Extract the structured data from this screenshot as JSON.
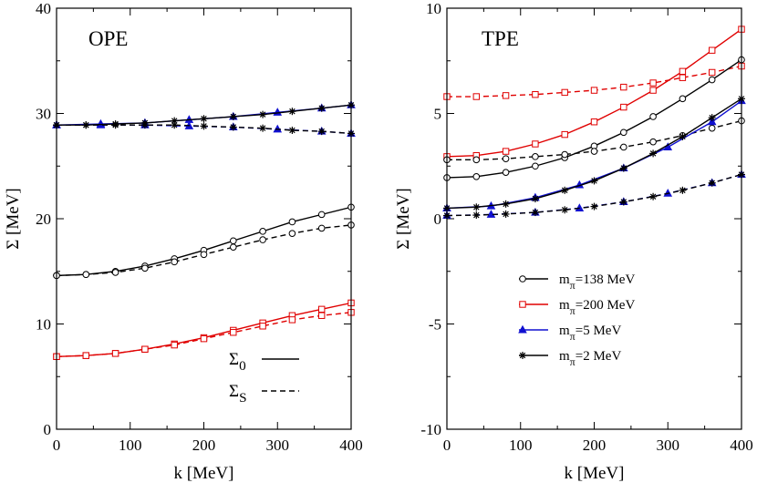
{
  "chart_data": [
    {
      "type": "line",
      "title": "OPE",
      "xlabel": "k [MeV]",
      "ylabel": "Σ [MeV]",
      "xlim": [
        0,
        400
      ],
      "ylim": [
        0,
        40
      ],
      "xticks": [
        0,
        100,
        200,
        300,
        400
      ],
      "yticks": [
        0,
        10,
        20,
        30,
        40
      ],
      "grid": false,
      "legend": [
        {
          "label": "Σ",
          "sub": "0",
          "dash": "solid"
        },
        {
          "label": "Σ",
          "sub": "S",
          "dash": "dashed"
        }
      ],
      "series": [
        {
          "color": "#000000",
          "marker": "circle",
          "dash": "solid",
          "x": [
            0,
            40,
            80,
            120,
            160,
            200,
            240,
            280,
            320,
            360,
            400
          ],
          "y": [
            14.6,
            14.7,
            15.0,
            15.5,
            16.2,
            17.0,
            17.9,
            18.8,
            19.7,
            20.4,
            21.1
          ]
        },
        {
          "color": "#000000",
          "marker": "circle",
          "dash": "dashed",
          "x": [
            0,
            40,
            80,
            120,
            160,
            200,
            240,
            280,
            320,
            360,
            400
          ],
          "y": [
            14.6,
            14.7,
            14.9,
            15.3,
            15.9,
            16.6,
            17.3,
            18.0,
            18.6,
            19.1,
            19.4
          ]
        },
        {
          "color": "#e00000",
          "marker": "square",
          "dash": "solid",
          "x": [
            0,
            40,
            80,
            120,
            160,
            200,
            240,
            280,
            320,
            360,
            400
          ],
          "y": [
            6.9,
            7.0,
            7.2,
            7.6,
            8.1,
            8.7,
            9.4,
            10.1,
            10.8,
            11.4,
            12.0
          ]
        },
        {
          "color": "#e00000",
          "marker": "square",
          "dash": "dashed",
          "x": [
            0,
            40,
            80,
            120,
            160,
            200,
            240,
            280,
            320,
            360,
            400
          ],
          "y": [
            6.9,
            7.0,
            7.2,
            7.6,
            8.0,
            8.6,
            9.2,
            9.8,
            10.4,
            10.8,
            11.1
          ]
        },
        {
          "color": "#1010d0",
          "marker": "triangle",
          "dash": "solid",
          "x": [
            0,
            60,
            120,
            180,
            240,
            300,
            360,
            400
          ],
          "y": [
            28.9,
            29.0,
            29.1,
            29.4,
            29.7,
            30.1,
            30.5,
            30.8
          ]
        },
        {
          "color": "#1010d0",
          "marker": "triangle",
          "dash": "dashed",
          "x": [
            0,
            60,
            120,
            180,
            240,
            300,
            360,
            400
          ],
          "y": [
            28.9,
            28.9,
            28.9,
            28.8,
            28.7,
            28.5,
            28.3,
            28.1
          ]
        },
        {
          "color": "#000000",
          "marker": "star",
          "dash": "solid",
          "x": [
            0,
            40,
            80,
            120,
            160,
            200,
            240,
            280,
            320,
            360,
            400
          ],
          "y": [
            28.9,
            28.9,
            29.0,
            29.1,
            29.3,
            29.5,
            29.7,
            29.9,
            30.2,
            30.5,
            30.8
          ]
        },
        {
          "color": "#000000",
          "marker": "star",
          "dash": "dashed",
          "x": [
            0,
            40,
            80,
            120,
            160,
            200,
            240,
            280,
            320,
            360,
            400
          ],
          "y": [
            28.9,
            28.9,
            28.9,
            28.9,
            28.9,
            28.8,
            28.7,
            28.6,
            28.4,
            28.3,
            28.1
          ]
        }
      ]
    },
    {
      "type": "line",
      "title": "TPE",
      "xlabel": "k [MeV]",
      "ylabel": "Σ [MeV]",
      "xlim": [
        0,
        400
      ],
      "ylim": [
        -10,
        10
      ],
      "xticks": [
        0,
        100,
        200,
        300,
        400
      ],
      "yticks": [
        -10,
        -5,
        0,
        5,
        10
      ],
      "grid": false,
      "legend_position": "center-right",
      "legend": [
        {
          "name": "m",
          "sub": "π",
          "suffix": "=138 MeV",
          "color": "#000000",
          "marker": "circle"
        },
        {
          "name": "m",
          "sub": "π",
          "suffix": "=200 MeV",
          "color": "#e00000",
          "marker": "square"
        },
        {
          "name": "m",
          "sub": "π",
          "suffix": "=5 MeV",
          "color": "#1010d0",
          "marker": "triangle"
        },
        {
          "name": "m",
          "sub": "π",
          "suffix": "=2 MeV",
          "color": "#000000",
          "marker": "star"
        }
      ],
      "series": [
        {
          "color": "#e00000",
          "marker": "square",
          "dash": "solid",
          "x": [
            0,
            40,
            80,
            120,
            160,
            200,
            240,
            280,
            320,
            360,
            400
          ],
          "y": [
            2.95,
            3.0,
            3.2,
            3.55,
            4.0,
            4.6,
            5.3,
            6.1,
            7.0,
            8.0,
            9.0
          ]
        },
        {
          "color": "#e00000",
          "marker": "square",
          "dash": "dashed",
          "x": [
            0,
            40,
            80,
            120,
            160,
            200,
            240,
            280,
            320,
            360,
            400
          ],
          "y": [
            5.8,
            5.8,
            5.85,
            5.9,
            6.0,
            6.1,
            6.25,
            6.45,
            6.7,
            6.95,
            7.25
          ]
        },
        {
          "color": "#000000",
          "marker": "circle",
          "dash": "solid",
          "x": [
            0,
            40,
            80,
            120,
            160,
            200,
            240,
            280,
            320,
            360,
            400
          ],
          "y": [
            1.95,
            2.0,
            2.2,
            2.5,
            2.9,
            3.45,
            4.1,
            4.85,
            5.7,
            6.6,
            7.55
          ]
        },
        {
          "color": "#000000",
          "marker": "circle",
          "dash": "dashed",
          "x": [
            0,
            40,
            80,
            120,
            160,
            200,
            240,
            280,
            320,
            360,
            400
          ],
          "y": [
            2.8,
            2.8,
            2.85,
            2.95,
            3.05,
            3.2,
            3.4,
            3.65,
            3.95,
            4.3,
            4.65
          ]
        },
        {
          "color": "#1010d0",
          "marker": "triangle",
          "dash": "solid",
          "x": [
            0,
            60,
            120,
            180,
            240,
            300,
            360,
            400
          ],
          "y": [
            0.5,
            0.6,
            1.0,
            1.6,
            2.4,
            3.4,
            4.6,
            5.6
          ]
        },
        {
          "color": "#1010d0",
          "marker": "triangle",
          "dash": "dashed",
          "x": [
            0,
            60,
            120,
            180,
            240,
            300,
            360,
            400
          ],
          "y": [
            0.15,
            0.2,
            0.3,
            0.5,
            0.8,
            1.2,
            1.7,
            2.1
          ]
        },
        {
          "color": "#000000",
          "marker": "star",
          "dash": "solid",
          "x": [
            0,
            40,
            80,
            120,
            160,
            200,
            240,
            280,
            320,
            360,
            400
          ],
          "y": [
            0.5,
            0.55,
            0.7,
            0.95,
            1.35,
            1.8,
            2.4,
            3.1,
            3.9,
            4.8,
            5.7
          ]
        },
        {
          "color": "#000000",
          "marker": "star",
          "dash": "dashed",
          "x": [
            0,
            40,
            80,
            120,
            160,
            200,
            240,
            280,
            320,
            360,
            400
          ],
          "y": [
            0.15,
            0.17,
            0.22,
            0.3,
            0.42,
            0.58,
            0.8,
            1.05,
            1.35,
            1.7,
            2.1
          ]
        }
      ]
    }
  ]
}
